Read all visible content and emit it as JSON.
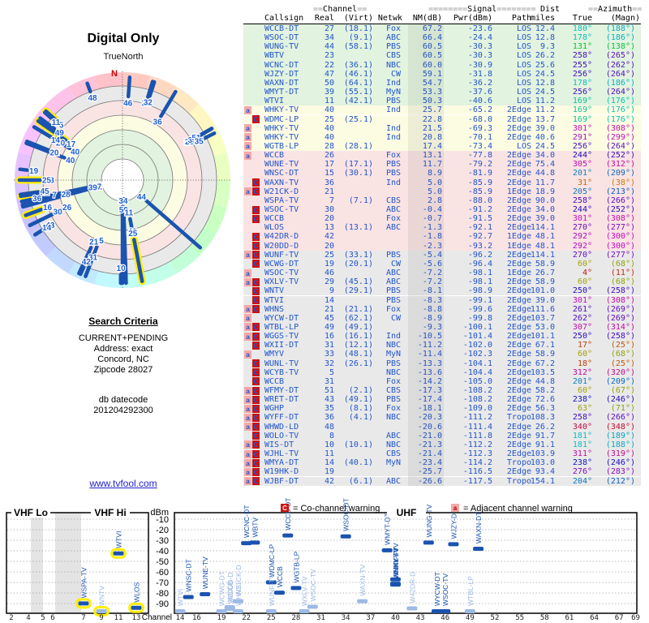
{
  "title": "Digital Only",
  "radar": {
    "north_label": "TrueNorth",
    "n_marker": "N"
  },
  "search": {
    "heading": "Search Criteria",
    "lines": [
      "CURRENT+PENDING",
      "Address: exact",
      "Concord, NC",
      "Zipcode 28027"
    ],
    "db_label": "db datecode",
    "db_value": "201204292300"
  },
  "link": "www.tvfool.com",
  "table": {
    "h1": {
      "channel_pre": "==",
      "channel": "Channel",
      "channel_post": "==",
      "signal_pre": "========",
      "signal": "Signal",
      "signal_post": "========",
      "dist": "Dist",
      "az_pre": "==",
      "azimuth": "Azimuth",
      "az_post": "=="
    },
    "h2": {
      "callsign": "Callsign",
      "real": "Real",
      "virt": "(Virt)",
      "netwk": "Netwk",
      "nm": "NM(dB)",
      "pwr": "Pwr(dBm)",
      "path": "Path",
      "miles": "miles",
      "true": "True",
      "magn": "(Magn)"
    }
  },
  "legend": {
    "c_letter": "C",
    "co": "= Co-channel warning",
    "a_letter": "a",
    "adj": "= Adjacent channel warning"
  },
  "charts": {
    "labels": {
      "dbm": "dBm",
      "channel": "Channel",
      "vhf_lo": "VHF Lo",
      "vhf_hi": "VHF Hi",
      "uhf": "UHF"
    },
    "dbm_ticks": [
      -10,
      -20,
      -30,
      -40,
      -50,
      -60,
      -70,
      -80,
      -90
    ],
    "vhf_ticks": [
      2,
      4,
      5,
      6,
      7,
      9,
      11,
      13
    ],
    "uhf_ticks": [
      14,
      16,
      19,
      22,
      25,
      28,
      31,
      34,
      37,
      40,
      43,
      46,
      49,
      52,
      55,
      58,
      61,
      64,
      67,
      69
    ]
  },
  "colors": {
    "accent_blue": "#1a53b0",
    "faint_blue": "#9db9e4",
    "data_blue": "#2255cc",
    "zone_green": "#e2f3df",
    "zone_yellow": "#fcfce3",
    "zone_pink": "#fae3e3",
    "zone_gray": "#e9e9e9",
    "marker_c_bg": "#cc1111",
    "marker_a_bg": "#f5a9a9",
    "link": "#2222cc",
    "north_red": "#cc0000",
    "highlight": "#ffee00"
  },
  "stations": [
    {
      "cs": "WCCB-DT",
      "re": 27,
      "vi": 18.1,
      "ne": "Fox",
      "nm": 67.2,
      "pw": -23.6,
      "pa": "LOS",
      "di": 12.4,
      "az": 180,
      "mg": 188,
      "m": ""
    },
    {
      "cs": "WSOC-DT",
      "re": 34,
      "vi": 9.1,
      "ne": "ABC",
      "nm": 66.4,
      "pw": -24.4,
      "pa": "LOS",
      "di": 12.8,
      "az": 178,
      "mg": 186,
      "m": ""
    },
    {
      "cs": "WUNG-TV",
      "re": 44,
      "vi": 58.1,
      "ne": "PBS",
      "nm": 60.5,
      "pw": -30.3,
      "pa": "LOS",
      "di": 9.3,
      "az": 131,
      "mg": 138,
      "m": ""
    },
    {
      "cs": "WBTV",
      "re": 23,
      "vi": null,
      "ne": "CBS",
      "nm": 60.5,
      "pw": -30.3,
      "pa": "LOS",
      "di": 26.2,
      "az": 258,
      "mg": 265,
      "m": ""
    },
    {
      "cs": "WCNC-DT",
      "re": 22,
      "vi": 36.1,
      "ne": "NBC",
      "nm": 60.0,
      "pw": -30.9,
      "pa": "LOS",
      "di": 25.6,
      "az": 255,
      "mg": 262,
      "m": ""
    },
    {
      "cs": "WJZY-DT",
      "re": 47,
      "vi": 46.1,
      "ne": "CW",
      "nm": 59.1,
      "pw": -31.8,
      "pa": "LOS",
      "di": 24.5,
      "az": 256,
      "mg": 264,
      "m": ""
    },
    {
      "cs": "WAXN-DT",
      "re": 50,
      "vi": 64.1,
      "ne": "Ind",
      "nm": 54.7,
      "pw": -36.2,
      "pa": "LOS",
      "di": 12.8,
      "az": 178,
      "mg": 186,
      "m": ""
    },
    {
      "cs": "WMYT-DT",
      "re": 39,
      "vi": 55.1,
      "ne": "MyN",
      "nm": 53.3,
      "pw": -37.6,
      "pa": "LOS",
      "di": 24.5,
      "az": 256,
      "mg": 264,
      "m": ""
    },
    {
      "cs": "WTVI",
      "re": 11,
      "vi": 42.1,
      "ne": "PBS",
      "nm": 50.3,
      "pw": -40.6,
      "pa": "LOS",
      "di": 11.2,
      "az": 169,
      "mg": 176,
      "m": ""
    },
    {
      "cs": "WHKY-TV",
      "re": 40,
      "vi": null,
      "ne": "Ind",
      "nm": 25.7,
      "pw": -65.2,
      "pa": "2Edge",
      "di": 11.2,
      "az": 169,
      "mg": 176,
      "m": "a"
    },
    {
      "cs": "WDMC-LP",
      "re": 25,
      "vi": 25.1,
      "ne": "",
      "nm": 22.8,
      "pw": -68.0,
      "pa": "2Edge",
      "di": 13.7,
      "az": 169,
      "mg": 176,
      "m": "c",
      "hl": 1
    },
    {
      "cs": "WHKY-TV",
      "re": 40,
      "vi": null,
      "ne": "Ind",
      "nm": 21.5,
      "pw": -69.3,
      "pa": "2Edge",
      "di": 39.0,
      "az": 301,
      "mg": 308,
      "m": "a"
    },
    {
      "cs": "WHKY-TV",
      "re": 40,
      "vi": null,
      "ne": "Ind",
      "nm": 20.8,
      "pw": -70.1,
      "pa": "2Edge",
      "di": 40.6,
      "az": 291,
      "mg": 299,
      "m": "a"
    },
    {
      "cs": "WGTB-LP",
      "re": 28,
      "vi": 28.1,
      "ne": "",
      "nm": 17.4,
      "pw": -73.4,
      "pa": "LOS",
      "di": 24.5,
      "az": 256,
      "mg": 264,
      "m": "a"
    },
    {
      "cs": "WCCB",
      "re": 26,
      "vi": null,
      "ne": "Fox",
      "nm": 13.1,
      "pw": -77.8,
      "pa": "2Edge",
      "di": 34.0,
      "az": 244,
      "mg": 252,
      "m": "a"
    },
    {
      "cs": "WUNE-TV",
      "re": 17,
      "vi": 17.1,
      "ne": "PBS",
      "nm": 11.7,
      "pw": -79.2,
      "pa": "2Edge",
      "di": 75.4,
      "az": 305,
      "mg": 312,
      "m": "",
      "hl": 1
    },
    {
      "cs": "WNSC-DT",
      "re": 15,
      "vi": 30.1,
      "ne": "PBS",
      "nm": 8.9,
      "pw": -81.9,
      "pa": "2Edge",
      "di": 44.8,
      "az": 201,
      "mg": 209,
      "m": ""
    },
    {
      "cs": "WAXN-TV",
      "re": 36,
      "vi": null,
      "ne": "Ind",
      "nm": 5.0,
      "pw": -85.9,
      "pa": "2Edge",
      "di": 11.7,
      "az": 31,
      "mg": 38,
      "m": "c",
      "f": 1
    },
    {
      "cs": "W21CK-D",
      "re": 21,
      "vi": null,
      "ne": "",
      "nm": 5.0,
      "pw": -85.9,
      "pa": "1Edge",
      "di": 18.9,
      "az": 205,
      "mg": 213,
      "m": "ac",
      "f": 1
    },
    {
      "cs": "WSPA-TV",
      "re": 7,
      "vi": 7.1,
      "ne": "CBS",
      "nm": 2.8,
      "pw": -88.0,
      "pa": "2Edge",
      "di": 90.0,
      "az": 258,
      "mg": 266,
      "m": ""
    },
    {
      "cs": "WSOC-TV",
      "re": 30,
      "vi": null,
      "ne": "ABC",
      "nm": -0.4,
      "pw": -91.2,
      "pa": "2Edge",
      "di": 34.0,
      "az": 244,
      "mg": 252,
      "m": "c",
      "f": 1
    },
    {
      "cs": "WCCB",
      "re": 20,
      "vi": null,
      "ne": "Fox",
      "nm": -0.7,
      "pw": -91.5,
      "pa": "2Edge",
      "di": 39.0,
      "az": 301,
      "mg": 308,
      "m": "c",
      "f": 1
    },
    {
      "cs": "WLOS",
      "re": 13,
      "vi": 13.1,
      "ne": "ABC",
      "nm": -1.3,
      "pw": -92.1,
      "pa": "2Edge",
      "di": 114.1,
      "az": 270,
      "mg": 277,
      "m": "",
      "hl": 1
    },
    {
      "cs": "W42DR-D",
      "re": 42,
      "vi": null,
      "ne": "",
      "nm": -1.8,
      "pw": -92.7,
      "pa": "1Edge",
      "di": 48.1,
      "az": 292,
      "mg": 300,
      "m": "c",
      "f": 1
    },
    {
      "cs": "W20DD-D",
      "re": 20,
      "vi": null,
      "ne": "",
      "nm": -2.3,
      "pw": -93.2,
      "pa": "1Edge",
      "di": 48.1,
      "az": 292,
      "mg": 300,
      "m": "c",
      "f": 1
    },
    {
      "cs": "WUNF-TV",
      "re": 25,
      "vi": 33.1,
      "ne": "PBS",
      "nm": -5.4,
      "pw": -96.2,
      "pa": "2Edge",
      "di": 114.1,
      "az": 270,
      "mg": 277,
      "m": "ac",
      "f": 1,
      "hl": 1
    },
    {
      "cs": "WCWG-DT",
      "re": 19,
      "vi": 20.1,
      "ne": "CW",
      "nm": -5.6,
      "pw": -96.4,
      "pa": "2Edge",
      "di": 58.9,
      "az": 60,
      "mg": 68,
      "m": "c",
      "f": 1
    },
    {
      "cs": "WSOC-TV",
      "re": 46,
      "vi": null,
      "ne": "ABC",
      "nm": -7.2,
      "pw": -98.1,
      "pa": "1Edge",
      "di": 26.7,
      "az": 4,
      "mg": 11,
      "m": "a"
    },
    {
      "cs": "WXLV-TV",
      "re": 29,
      "vi": 45.1,
      "ne": "ABC",
      "nm": -7.2,
      "pw": -98.1,
      "pa": "2Edge",
      "di": 58.9,
      "az": 60,
      "mg": 68,
      "m": "ac",
      "f": 1
    },
    {
      "cs": "WNTV",
      "re": 9,
      "vi": 29.1,
      "ne": "PBS",
      "nm": -8.1,
      "pw": -98.9,
      "pa": "2Edge",
      "di": 101.0,
      "az": 250,
      "mg": 258,
      "m": "c",
      "f": 1,
      "hl": 1
    },
    {
      "cs": "WTVI",
      "re": 14,
      "vi": null,
      "ne": "PBS",
      "nm": -8.3,
      "pw": -99.1,
      "pa": "2Edge",
      "di": 39.0,
      "az": 301,
      "mg": 308,
      "m": "c",
      "f": 1
    },
    {
      "cs": "WHNS",
      "re": 21,
      "vi": 21.1,
      "ne": "Fox",
      "nm": -8.8,
      "pw": -99.6,
      "pa": "2Edge",
      "di": 111.6,
      "az": 261,
      "mg": 269,
      "m": "ac",
      "f": 1,
      "hl": 1
    },
    {
      "cs": "WYCW-DT",
      "re": 45,
      "vi": 62.1,
      "ne": "CW",
      "nm": -8.9,
      "pw": -99.8,
      "pa": "2Edge",
      "di": 103.7,
      "az": 262,
      "mg": 269,
      "m": "a"
    },
    {
      "cs": "WTBL-LP",
      "re": 49,
      "vi": 49.1,
      "ne": "",
      "nm": -9.3,
      "pw": -100.1,
      "pa": "2Edge",
      "di": 53.0,
      "az": 307,
      "mg": 314,
      "m": "ac",
      "f": 1
    },
    {
      "cs": "WGGS-TV",
      "re": 16,
      "vi": 16.1,
      "ne": "Ind",
      "nm": -10.5,
      "pw": -101.4,
      "pa": "2Edge",
      "di": 101.1,
      "az": 250,
      "mg": 258,
      "m": "ac",
      "f": 1,
      "hl": 1
    },
    {
      "cs": "WXII-DT",
      "re": 31,
      "vi": 12.1,
      "ne": "NBC",
      "nm": -11.2,
      "pw": -102.0,
      "pa": "2Edge",
      "di": 67.1,
      "az": 17,
      "mg": 25,
      "m": "c"
    },
    {
      "cs": "WMYV",
      "re": 33,
      "vi": 48.1,
      "ne": "MyN",
      "nm": -11.4,
      "pw": -102.3,
      "pa": "2Edge",
      "di": 58.9,
      "az": 60,
      "mg": 68,
      "m": "a"
    },
    {
      "cs": "WUNL-TV",
      "re": 32,
      "vi": 26.1,
      "ne": "PBS",
      "nm": -13.3,
      "pw": -104.1,
      "pa": "2Edge",
      "di": 67.2,
      "az": 18,
      "mg": 25,
      "m": "c"
    },
    {
      "cs": "WCYB-TV",
      "re": 5,
      "vi": null,
      "ne": "NBC",
      "nm": -13.6,
      "pw": -104.4,
      "pa": "2Edge",
      "di": 103.5,
      "az": 312,
      "mg": 320,
      "m": "c",
      "hl": 1
    },
    {
      "cs": "WCCB",
      "re": 31,
      "vi": null,
      "ne": "Fox",
      "nm": -14.2,
      "pw": -105.0,
      "pa": "2Edge",
      "di": 44.8,
      "az": 201,
      "mg": 209,
      "m": "c"
    },
    {
      "cs": "WFMY-DT",
      "re": 51,
      "vi": 2.1,
      "ne": "CBS",
      "nm": -17.3,
      "pw": -108.2,
      "pa": "2Edge",
      "di": 58.2,
      "az": 60,
      "mg": 67,
      "m": "ac"
    },
    {
      "cs": "WRET-DT",
      "re": 43,
      "vi": 49.1,
      "ne": "PBS",
      "nm": -17.4,
      "pw": -108.2,
      "pa": "2Edge",
      "di": 72.6,
      "az": 238,
      "mg": 246,
      "m": "ac"
    },
    {
      "cs": "WGHP",
      "re": 35,
      "vi": 8.1,
      "ne": "Fox",
      "nm": -18.1,
      "pw": -109.0,
      "pa": "2Edge",
      "di": 56.3,
      "az": 63,
      "mg": 71,
      "m": "ac"
    },
    {
      "cs": "WYFF-DT",
      "re": 36,
      "vi": 4.1,
      "ne": "NBC",
      "nm": -20.3,
      "pw": -111.2,
      "pa": "Tropo",
      "di": 108.3,
      "az": 258,
      "mg": 266,
      "m": "ac"
    },
    {
      "cs": "WHWD-LD",
      "re": 48,
      "vi": null,
      "ne": "",
      "nm": -20.6,
      "pw": -111.4,
      "pa": "2Edge",
      "di": 26.2,
      "az": 340,
      "mg": 348,
      "m": "ac"
    },
    {
      "cs": "WOLO-TV",
      "re": 8,
      "vi": null,
      "ne": "ABC",
      "nm": -21.0,
      "pw": -111.8,
      "pa": "2Edge",
      "di": 91.7,
      "az": 181,
      "mg": 189,
      "m": "c"
    },
    {
      "cs": "WIS-DT",
      "re": 10,
      "vi": 10.1,
      "ne": "NBC",
      "nm": -21.3,
      "pw": -112.2,
      "pa": "2Edge",
      "di": 91.1,
      "az": 181,
      "mg": 188,
      "m": "ac"
    },
    {
      "cs": "WJHL-TV",
      "re": 11,
      "vi": null,
      "ne": "CBS",
      "nm": -21.4,
      "pw": -112.3,
      "pa": "2Edge",
      "di": 103.9,
      "az": 311,
      "mg": 319,
      "m": "ac"
    },
    {
      "cs": "WMYA-DT",
      "re": 14,
      "vi": 40.1,
      "ne": "MyN",
      "nm": -23.4,
      "pw": -114.2,
      "pa": "Tropo",
      "di": 103.0,
      "az": 238,
      "mg": 246,
      "m": "ac"
    },
    {
      "cs": "W19HK-D",
      "re": 19,
      "vi": null,
      "ne": "",
      "nm": -25.7,
      "pw": -116.5,
      "pa": "2Edge",
      "di": 93.4,
      "az": 276,
      "mg": 283,
      "m": "ac"
    },
    {
      "cs": "WJBF-DT",
      "re": 42,
      "vi": 6.1,
      "ne": "ABC",
      "nm": -26.6,
      "pw": -117.5,
      "pa": "Tropo",
      "di": 154.1,
      "az": 204,
      "mg": 212,
      "m": "ac"
    }
  ]
}
